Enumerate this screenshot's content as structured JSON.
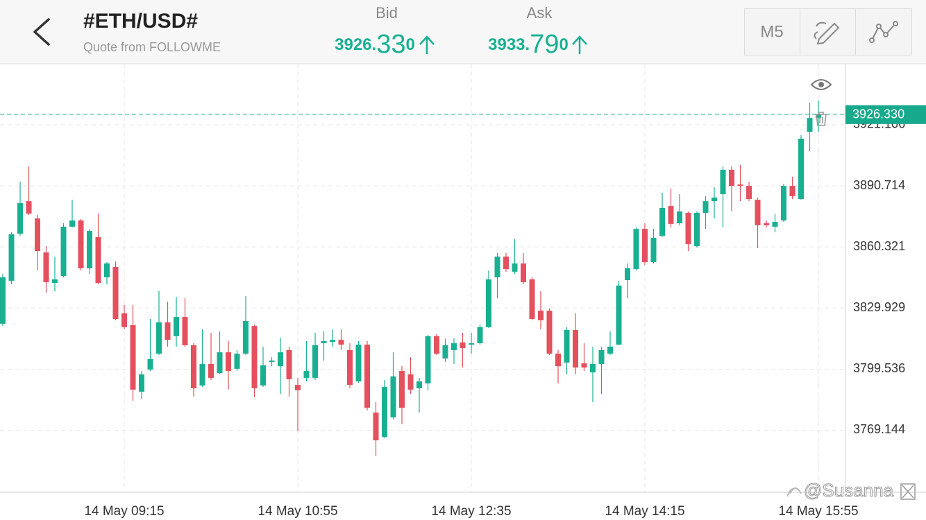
{
  "header": {
    "title": "#ETH/USD#",
    "subtitle": "Quote from FOLLOWME",
    "bid_label": "Bid",
    "bid": "3926.330",
    "ask_label": "Ask",
    "ask": "3933.790",
    "timeframe": "M5"
  },
  "watermark": "@Susanna",
  "chart_data": {
    "type": "candlestick",
    "categories": [
      null,
      null,
      null,
      null,
      null,
      null,
      null,
      null,
      null,
      null,
      null,
      null,
      null,
      null,
      "14 May 09:15",
      null,
      null,
      null,
      null,
      null,
      null,
      null,
      null,
      null,
      null,
      null,
      null,
      null,
      null,
      null,
      null,
      null,
      null,
      null,
      "14 May 10:55",
      null,
      null,
      null,
      null,
      null,
      null,
      null,
      null,
      null,
      null,
      null,
      null,
      null,
      null,
      null,
      null,
      null,
      null,
      null,
      "14 May 12:35",
      null,
      null,
      null,
      null,
      null,
      null,
      null,
      null,
      null,
      null,
      null,
      null,
      null,
      null,
      null,
      null,
      null,
      null,
      null,
      "14 May 14:15",
      null,
      null,
      null,
      null,
      null,
      null,
      null,
      null,
      null,
      null,
      null,
      null,
      null,
      null,
      null,
      null,
      null,
      null,
      null,
      "14 May 15:55"
    ],
    "open": [
      3822.1,
      3843.5,
      3866.9,
      3883.1,
      3874.5,
      3857.6,
      3842.4,
      3845.9,
      3870.4,
      3873.5,
      3849.7,
      3865.2,
      3845.2,
      3850.4,
      3827.3,
      3821.4,
      3788.3,
      3799.3,
      3807.2,
      3822.8,
      3815.9,
      3825.5,
      3811.4,
      3791.4,
      3802.1,
      3797.6,
      3807.9,
      3799.7,
      3807.2,
      3821.0,
      3791.4,
      3803.1,
      3801.0,
      3809.0,
      3791.7,
      3795.2,
      3795.2,
      3812.4,
      3813.1,
      3814.1,
      3809.0,
      3793.4,
      3811.7,
      3777.9,
      3765.8,
      3775.5,
      3798.6,
      3796.9,
      3790.0,
      3792.4,
      3815.9,
      3804.8,
      3809.0,
      3812.8,
      3811.7,
      3812.4,
      3820.4,
      3845.2,
      3855.5,
      3848.0,
      3852.1,
      3844.2,
      3828.6,
      3828.6,
      3807.2,
      3802.8,
      3819.0,
      3802.4,
      3797.9,
      3802.1,
      3807.2,
      3811.7,
      3843.8,
      3849.3,
      3869.3,
      3852.8,
      3865.9,
      3880.7,
      3872.1,
      3877.3,
      3860.7,
      3877.3,
      3883.1,
      3886.6,
      3898.7,
      3891.4,
      3890.7,
      3883.8,
      3872.1,
      3870.4,
      3873.5,
      3890.7,
      3884.2,
      3917.6,
      3924.5
    ],
    "high": [
      3846.9,
      3867.6,
      3892.8,
      3900.4,
      3876.2,
      3860.7,
      3855.5,
      3872.1,
      3883.8,
      3874.2,
      3869.3,
      3876.9,
      3852.8,
      3853.1,
      3831.4,
      3831.4,
      3798.6,
      3824.5,
      3838.3,
      3833.1,
      3835.5,
      3834.8,
      3812.4,
      3819.3,
      3817.6,
      3818.3,
      3813.5,
      3809.0,
      3835.9,
      3821.7,
      3810.7,
      3805.5,
      3815.2,
      3810.7,
      3795.2,
      3813.5,
      3817.6,
      3818.3,
      3819.3,
      3819.3,
      3812.4,
      3813.5,
      3813.5,
      3783.1,
      3794.1,
      3807.9,
      3801.0,
      3805.5,
      3795.2,
      3816.6,
      3816.9,
      3814.8,
      3814.8,
      3817.6,
      3817.6,
      3821.7,
      3848.6,
      3857.3,
      3857.3,
      3864.2,
      3857.3,
      3845.2,
      3838.3,
      3829.7,
      3809.0,
      3820.4,
      3827.3,
      3812.4,
      3810.7,
      3810.7,
      3818.3,
      3843.5,
      3852.1,
      3870.0,
      3872.1,
      3869.3,
      3887.3,
      3889.4,
      3886.6,
      3878.0,
      3878.0,
      3885.6,
      3890.0,
      3900.4,
      3900.4,
      3901.1,
      3892.8,
      3884.9,
      3873.5,
      3876.9,
      3891.8,
      3895.2,
      3915.9,
      3932.1,
      3933.2
    ],
    "low": [
      3821.0,
      3841.7,
      3865.9,
      3876.2,
      3848.6,
      3837.6,
      3838.3,
      3845.2,
      3870.0,
      3848.6,
      3846.9,
      3841.7,
      3841.7,
      3823.8,
      3819.3,
      3783.8,
      3784.8,
      3798.6,
      3806.6,
      3810.7,
      3810.7,
      3810.7,
      3785.9,
      3790.7,
      3794.1,
      3796.9,
      3789.3,
      3798.6,
      3806.6,
      3785.5,
      3790.7,
      3801.0,
      3787.2,
      3785.9,
      3768.6,
      3793.4,
      3794.1,
      3803.8,
      3810.7,
      3809.0,
      3790.0,
      3792.8,
      3779.0,
      3756.2,
      3765.2,
      3774.5,
      3772.1,
      3787.2,
      3777.9,
      3789.0,
      3806.6,
      3803.1,
      3802.1,
      3800.3,
      3807.2,
      3811.7,
      3820.0,
      3834.8,
      3848.0,
      3846.9,
      3841.7,
      3823.8,
      3819.3,
      3806.6,
      3792.4,
      3796.9,
      3796.9,
      3798.6,
      3783.1,
      3787.2,
      3806.6,
      3811.4,
      3834.8,
      3848.6,
      3851.4,
      3852.1,
      3865.2,
      3870.0,
      3871.1,
      3858.3,
      3860.0,
      3869.3,
      3874.5,
      3870.0,
      3878.0,
      3883.1,
      3883.1,
      3859.7,
      3870.0,
      3867.6,
      3872.8,
      3884.2,
      3883.8,
      3908.0,
      3917.6
    ],
    "close": [
      3845.2,
      3866.6,
      3882.1,
      3876.9,
      3858.3,
      3842.8,
      3844.2,
      3870.4,
      3873.5,
      3849.7,
      3868.3,
      3842.4,
      3852.1,
      3824.5,
      3820.4,
      3789.3,
      3796.9,
      3804.5,
      3822.8,
      3814.1,
      3825.5,
      3811.4,
      3790.0,
      3802.1,
      3795.2,
      3807.9,
      3798.6,
      3807.2,
      3823.5,
      3790.0,
      3801.4,
      3803.8,
      3807.9,
      3794.5,
      3789.0,
      3798.6,
      3811.4,
      3813.5,
      3814.1,
      3811.7,
      3791.7,
      3811.7,
      3780.3,
      3764.1,
      3790.7,
      3795.9,
      3780.3,
      3789.3,
      3793.4,
      3815.9,
      3807.2,
      3811.4,
      3812.4,
      3810.0,
      3812.4,
      3820.4,
      3844.2,
      3855.5,
      3849.3,
      3852.1,
      3842.8,
      3824.5,
      3823.8,
      3807.2,
      3801.0,
      3819.0,
      3800.3,
      3800.3,
      3802.1,
      3809.0,
      3810.7,
      3841.1,
      3849.7,
      3869.3,
      3852.8,
      3864.9,
      3879.7,
      3871.8,
      3878.0,
      3861.8,
      3877.3,
      3883.1,
      3884.9,
      3898.7,
      3890.7,
      3890.7,
      3884.2,
      3871.1,
      3871.1,
      3872.8,
      3890.7,
      3885.6,
      3914.2,
      3924.5,
      3926.33
    ],
    "up_color": "#19b092",
    "down_color": "#e4505d",
    "ylim": [
      3738.25,
      3951.46
    ],
    "yticks": [
      3921.106,
      3890.714,
      3860.321,
      3829.929,
      3799.536,
      3769.144
    ],
    "current_price": {
      "value": 3926.33,
      "label": "3926.330"
    },
    "grid": true
  }
}
